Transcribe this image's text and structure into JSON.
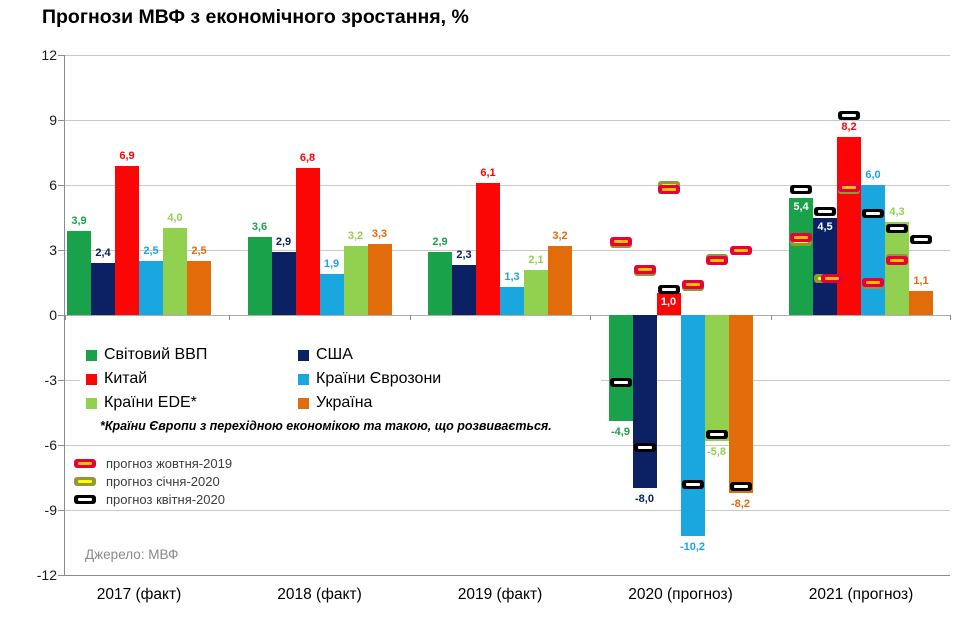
{
  "title": "Прогнози МВФ з економічного зростання, %",
  "source": "Джерело: МВФ",
  "footnote": "*Країни Європи з перехідною економікою та такою, що розвивається.",
  "chart_data": {
    "type": "bar",
    "categories": [
      "2017 (факт)",
      "2018 (факт)",
      "2019 (факт)",
      "2020 (прогноз)",
      "2021 (прогноз)"
    ],
    "series": [
      {
        "name": "Світовий ВВП",
        "color": "#1AA24A",
        "values": [
          3.9,
          3.6,
          2.9,
          -4.9,
          5.4
        ]
      },
      {
        "name": "США",
        "color": "#0B2164",
        "values": [
          2.4,
          2.9,
          2.3,
          -8.0,
          4.5
        ]
      },
      {
        "name": "Китай",
        "color": "#FB0505",
        "values": [
          6.9,
          6.8,
          6.1,
          1.0,
          8.2
        ]
      },
      {
        "name": "Країни Єврозони",
        "color": "#1AA7E0",
        "values": [
          2.5,
          1.9,
          1.3,
          -10.2,
          6.0
        ]
      },
      {
        "name": "Країни ЕDE*",
        "color": "#92D050",
        "values": [
          4.0,
          3.2,
          2.1,
          -5.8,
          4.3
        ]
      },
      {
        "name": "Україна",
        "color": "#E36C0A",
        "values": [
          2.5,
          3.3,
          3.2,
          -8.2,
          1.1
        ]
      }
    ],
    "ylim": [
      -12,
      12
    ],
    "y_ticks": [
      12,
      9,
      6,
      3,
      0,
      -3,
      -6,
      -9,
      -12
    ],
    "grid": true,
    "decimal_separator": ",",
    "inside_value_labels": [
      [
        3,
        2
      ],
      [
        4,
        0
      ],
      [
        4,
        1
      ]
    ],
    "forecast_markers": {
      "types": [
        {
          "id": "oct2019",
          "label": "прогноз жовтня-2019",
          "border": "#E8003C",
          "stripe": "#FFC000"
        },
        {
          "id": "jan2020",
          "label": "прогноз січня-2020",
          "border": "#8F9939",
          "stripe": "#FFFF00"
        },
        {
          "id": "apr2020",
          "label": "прогноз квітня-2020",
          "border": "#000000",
          "stripe": "#FFFFFF"
        }
      ],
      "points": [
        {
          "category": 3,
          "series": 0,
          "type": "oct2019",
          "value": 3.4
        },
        {
          "category": 3,
          "series": 1,
          "type": "oct2019",
          "value": 2.1
        },
        {
          "category": 3,
          "series": 2,
          "type": "oct2019",
          "value": 5.8
        },
        {
          "category": 3,
          "series": 3,
          "type": "oct2019",
          "value": 1.4
        },
        {
          "category": 3,
          "series": 4,
          "type": "oct2019",
          "value": 2.5
        },
        {
          "category": 3,
          "series": 5,
          "type": "oct2019",
          "value": 3.0
        },
        {
          "category": 3,
          "series": 0,
          "type": "jan2020",
          "value": 3.3
        },
        {
          "category": 3,
          "series": 1,
          "type": "jan2020",
          "value": 2.0
        },
        {
          "category": 3,
          "series": 2,
          "type": "jan2020",
          "value": 6.0
        },
        {
          "category": 3,
          "series": 3,
          "type": "jan2020",
          "value": 1.3
        },
        {
          "category": 3,
          "series": 4,
          "type": "jan2020",
          "value": 2.6
        },
        {
          "category": 3,
          "series": 0,
          "type": "apr2020",
          "value": -3.1
        },
        {
          "category": 3,
          "series": 1,
          "type": "apr2020",
          "value": -6.1
        },
        {
          "category": 3,
          "series": 2,
          "type": "apr2020",
          "value": 1.2
        },
        {
          "category": 3,
          "series": 3,
          "type": "apr2020",
          "value": -7.8
        },
        {
          "category": 3,
          "series": 4,
          "type": "apr2020",
          "value": -5.5
        },
        {
          "category": 3,
          "series": 5,
          "type": "apr2020",
          "value": -7.9
        },
        {
          "category": 4,
          "series": 0,
          "type": "oct2019",
          "value": 3.6
        },
        {
          "category": 4,
          "series": 1,
          "type": "oct2019",
          "value": 1.7
        },
        {
          "category": 4,
          "series": 2,
          "type": "oct2019",
          "value": 5.9
        },
        {
          "category": 4,
          "series": 3,
          "type": "oct2019",
          "value": 1.5
        },
        {
          "category": 4,
          "series": 4,
          "type": "oct2019",
          "value": 2.5
        },
        {
          "category": 4,
          "series": 0,
          "type": "jan2020",
          "value": 3.4
        },
        {
          "category": 4,
          "series": 1,
          "type": "jan2020",
          "value": 1.7
        },
        {
          "category": 4,
          "series": 2,
          "type": "jan2020",
          "value": 5.8
        },
        {
          "category": 4,
          "series": 3,
          "type": "jan2020",
          "value": 1.4
        },
        {
          "category": 4,
          "series": 4,
          "type": "jan2020",
          "value": 2.6
        },
        {
          "category": 4,
          "series": 0,
          "type": "apr2020",
          "value": 5.8
        },
        {
          "category": 4,
          "series": 1,
          "type": "apr2020",
          "value": 4.8
        },
        {
          "category": 4,
          "series": 2,
          "type": "apr2020",
          "value": 9.2
        },
        {
          "category": 4,
          "series": 3,
          "type": "apr2020",
          "value": 4.7
        },
        {
          "category": 4,
          "series": 4,
          "type": "apr2020",
          "value": 4.0
        },
        {
          "category": 4,
          "series": 5,
          "type": "apr2020",
          "value": 3.5
        }
      ]
    }
  }
}
